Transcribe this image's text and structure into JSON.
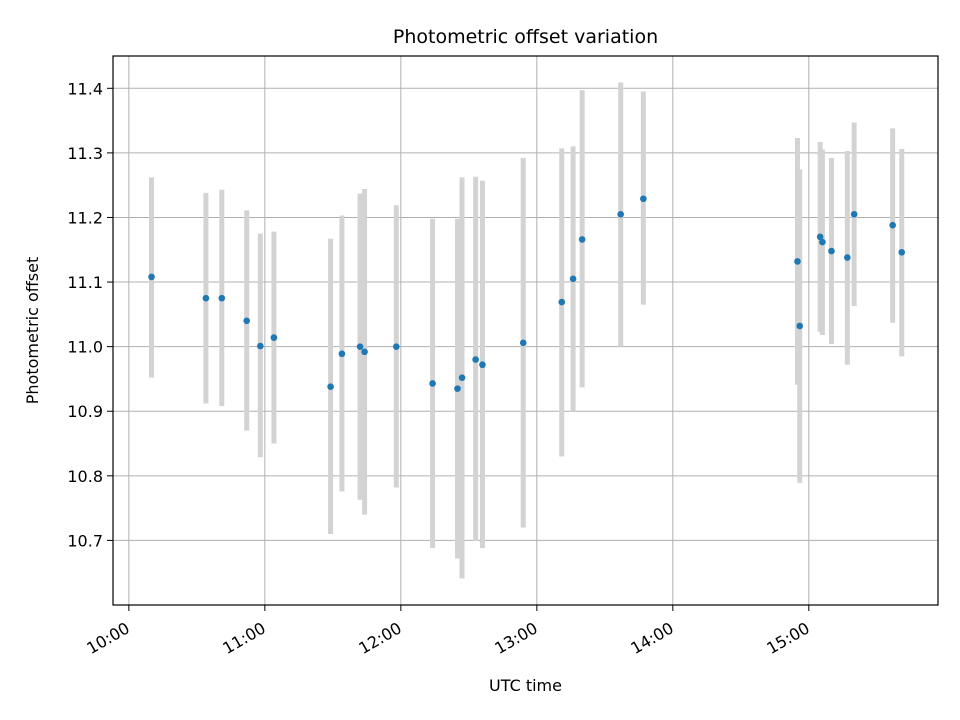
{
  "chart_data": {
    "type": "scatter",
    "title": "Photometric offset variation",
    "xlabel": "UTC time",
    "ylabel": "Photometric offset",
    "xlim": [
      "09:53",
      "15:57"
    ],
    "ylim": [
      10.6,
      11.45
    ],
    "xticks": [
      "10:00",
      "11:00",
      "12:00",
      "13:00",
      "14:00",
      "15:00"
    ],
    "yticks": [
      "10.7",
      "10.8",
      "10.9",
      "11.0",
      "11.1",
      "11.2",
      "11.3",
      "11.4"
    ],
    "grid": true,
    "errorbar_color": "#d3d3d3",
    "point_color": "#1f77b4",
    "series": [
      {
        "points": [
          {
            "x": "10:10",
            "y": 11.108,
            "low": 10.952,
            "high": 11.262
          },
          {
            "x": "10:34",
            "y": 11.075,
            "low": 10.912,
            "high": 11.238
          },
          {
            "x": "10:41",
            "y": 11.075,
            "low": 10.908,
            "high": 11.243
          },
          {
            "x": "10:52",
            "y": 11.04,
            "low": 10.87,
            "high": 11.211
          },
          {
            "x": "10:58",
            "y": 11.001,
            "low": 10.829,
            "high": 11.175
          },
          {
            "x": "11:04",
            "y": 11.014,
            "low": 10.85,
            "high": 11.178
          },
          {
            "x": "11:29",
            "y": 10.938,
            "low": 10.71,
            "high": 11.167
          },
          {
            "x": "11:34",
            "y": 10.989,
            "low": 10.776,
            "high": 11.203
          },
          {
            "x": "11:42",
            "y": 11.0,
            "low": 10.763,
            "high": 11.237
          },
          {
            "x": "11:44",
            "y": 10.992,
            "low": 10.74,
            "high": 11.244
          },
          {
            "x": "11:58",
            "y": 11.0,
            "low": 10.782,
            "high": 11.219
          },
          {
            "x": "12:14",
            "y": 10.943,
            "low": 10.688,
            "high": 11.198
          },
          {
            "x": "12:25",
            "y": 10.935,
            "low": 10.672,
            "high": 11.198
          },
          {
            "x": "12:27",
            "y": 10.952,
            "low": 10.641,
            "high": 11.262
          },
          {
            "x": "12:33",
            "y": 10.98,
            "low": 10.699,
            "high": 11.263
          },
          {
            "x": "12:36",
            "y": 10.972,
            "low": 10.688,
            "high": 11.257
          },
          {
            "x": "12:54",
            "y": 11.006,
            "low": 10.72,
            "high": 11.292
          },
          {
            "x": "13:11",
            "y": 11.069,
            "low": 10.83,
            "high": 11.307
          },
          {
            "x": "13:16",
            "y": 11.105,
            "low": 10.9,
            "high": 11.31
          },
          {
            "x": "13:20",
            "y": 11.166,
            "low": 10.937,
            "high": 11.397
          },
          {
            "x": "13:37",
            "y": 11.205,
            "low": 11.0,
            "high": 11.409
          },
          {
            "x": "13:47",
            "y": 11.229,
            "low": 11.065,
            "high": 11.395
          },
          {
            "x": "14:55",
            "y": 11.132,
            "low": 10.941,
            "high": 11.323
          },
          {
            "x": "14:56",
            "y": 11.032,
            "low": 10.789,
            "high": 11.274
          },
          {
            "x": "15:05",
            "y": 11.17,
            "low": 11.023,
            "high": 11.317
          },
          {
            "x": "15:06",
            "y": 11.162,
            "low": 11.018,
            "high": 11.305
          },
          {
            "x": "15:10",
            "y": 11.148,
            "low": 11.004,
            "high": 11.292
          },
          {
            "x": "15:17",
            "y": 11.138,
            "low": 10.972,
            "high": 11.303
          },
          {
            "x": "15:20",
            "y": 11.205,
            "low": 11.063,
            "high": 11.347
          },
          {
            "x": "15:37",
            "y": 11.188,
            "low": 11.037,
            "high": 11.338
          },
          {
            "x": "15:41",
            "y": 11.146,
            "low": 10.985,
            "high": 11.306
          }
        ]
      }
    ]
  }
}
